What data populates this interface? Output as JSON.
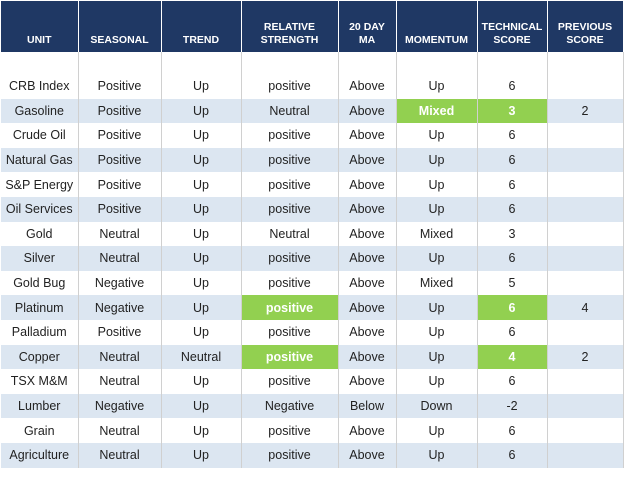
{
  "table": {
    "columns": [
      "UNIT",
      "SEASONAL",
      "TREND",
      "RELATIVE STRENGTH",
      "20 DAY MA",
      "MOMENTUM",
      "TECHNICAL SCORE",
      "PREVIOUS SCORE"
    ],
    "header_color": "#1f3864",
    "stripe_color": "#dce6f1",
    "highlight_color": "#92d050",
    "rows": [
      {
        "cells": [
          "CRB Index",
          "Positive",
          "Up",
          "positive",
          "Above",
          "Up",
          6,
          null
        ],
        "highlight": []
      },
      {
        "cells": [
          "Gasoline",
          "Positive",
          "Up",
          "Neutral",
          "Above",
          "Mixed",
          3,
          2
        ],
        "highlight": [
          5,
          6
        ]
      },
      {
        "cells": [
          "Crude Oil",
          "Positive",
          "Up",
          "positive",
          "Above",
          "Up",
          6,
          null
        ],
        "highlight": []
      },
      {
        "cells": [
          "Natural Gas",
          "Positive",
          "Up",
          "positive",
          "Above",
          "Up",
          6,
          null
        ],
        "highlight": []
      },
      {
        "cells": [
          "S&P Energy",
          "Positive",
          "Up",
          "positive",
          "Above",
          "Up",
          6,
          null
        ],
        "highlight": []
      },
      {
        "cells": [
          "Oil Services",
          "Positive",
          "Up",
          "positive",
          "Above",
          "Up",
          6,
          null
        ],
        "highlight": []
      },
      {
        "cells": [
          "Gold",
          "Neutral",
          "Up",
          "Neutral",
          "Above",
          "Mixed",
          3,
          null
        ],
        "highlight": []
      },
      {
        "cells": [
          "Silver",
          "Neutral",
          "Up",
          "positive",
          "Above",
          "Up",
          6,
          null
        ],
        "highlight": []
      },
      {
        "cells": [
          "Gold Bug",
          "Negative",
          "Up",
          "positive",
          "Above",
          "Mixed",
          5,
          null
        ],
        "highlight": []
      },
      {
        "cells": [
          "Platinum",
          "Negative",
          "Up",
          "positive",
          "Above",
          "Up",
          6,
          4
        ],
        "highlight": [
          3,
          6
        ]
      },
      {
        "cells": [
          "Palladium",
          "Positive",
          "Up",
          "positive",
          "Above",
          "Up",
          6,
          null
        ],
        "highlight": []
      },
      {
        "cells": [
          "Copper",
          "Neutral",
          "Neutral",
          "positive",
          "Above",
          "Up",
          4,
          2
        ],
        "highlight": [
          3,
          6
        ]
      },
      {
        "cells": [
          "TSX M&M",
          "Neutral",
          "Up",
          "positive",
          "Above",
          "Up",
          6,
          null
        ],
        "highlight": []
      },
      {
        "cells": [
          "Lumber",
          "Negative",
          "Up",
          "Negative",
          "Below",
          "Down",
          -2,
          null
        ],
        "highlight": []
      },
      {
        "cells": [
          "Grain",
          "Neutral",
          "Up",
          "positive",
          "Above",
          "Up",
          6,
          null
        ],
        "highlight": []
      },
      {
        "cells": [
          "Agriculture",
          "Neutral",
          "Up",
          "positive",
          "Above",
          "Up",
          6,
          null
        ],
        "highlight": []
      }
    ]
  }
}
